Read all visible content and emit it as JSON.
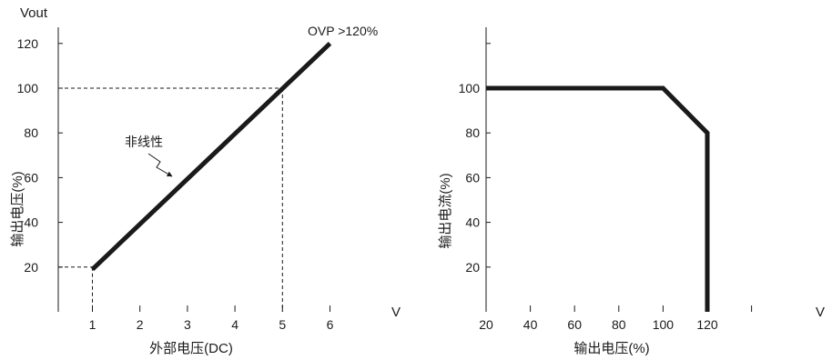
{
  "chart_data": [
    {
      "type": "line",
      "x_unit": "V",
      "xlabel": "外部电压(DC)",
      "ylabel": "输出电压(%)",
      "y_unit": "Vout",
      "xlim": [
        0.3,
        6.3
      ],
      "ylim": [
        0,
        130
      ],
      "x_ticks": [
        1,
        2,
        3,
        4,
        5,
        6
      ],
      "y_ticks": [
        20,
        40,
        60,
        80,
        100,
        120
      ],
      "series": [
        {
          "x": [
            1,
            6
          ],
          "y": [
            19,
            120
          ]
        }
      ],
      "dashed_guides": [
        {
          "x": 1,
          "y": 20
        },
        {
          "x": 5,
          "y": 100
        }
      ],
      "annotations": [
        "OVP >120%",
        "非线性"
      ]
    },
    {
      "type": "line",
      "x_unit": "V",
      "xlabel": "输出电压(%)",
      "ylabel": "输出电流(%)",
      "xlim": [
        20,
        140
      ],
      "ylim": [
        0,
        130
      ],
      "x_ticks": [
        20,
        40,
        60,
        80,
        100,
        120
      ],
      "x_minor_ticks": [
        140
      ],
      "y_ticks": [
        20,
        40,
        60,
        80,
        100
      ],
      "y_minor_ticks": [
        120
      ],
      "series": [
        {
          "x": [
            20,
            100,
            120,
            120
          ],
          "y": [
            100,
            100,
            80,
            0
          ]
        }
      ]
    }
  ]
}
